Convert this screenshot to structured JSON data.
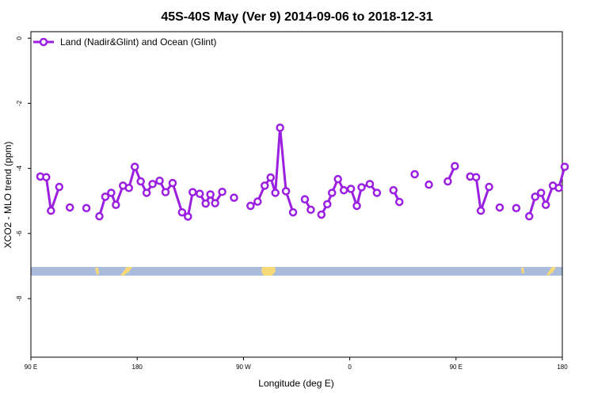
{
  "chart_data": {
    "type": "line",
    "title": "45S-40S May (Ver 9)   2014-09-06 to 2018-12-31",
    "xlabel": "Longitude (deg E)",
    "ylabel": "XCO2 - MLO trend (ppm)",
    "x_ticks": [
      {
        "pos": 90,
        "label": "90 E"
      },
      {
        "pos": 180,
        "label": "180"
      },
      {
        "pos": 270,
        "label": "90 W"
      },
      {
        "pos": 360,
        "label": "0"
      },
      {
        "pos": 450,
        "label": "90 E"
      },
      {
        "pos": 540,
        "label": "180"
      }
    ],
    "y_ticks": [
      0,
      -2,
      -4,
      -6,
      -8
    ],
    "xlim": [
      90,
      540
    ],
    "ylim": [
      -9.8,
      0.2
    ],
    "grid": false,
    "legend_position": "top-left",
    "series": [
      {
        "name": "Land (Nadir&Glint) and Ocean (Glint)",
        "color": "#9b1fe0",
        "points": [
          [
            98,
            -4.25
          ],
          [
            103,
            -4.27
          ],
          [
            107,
            -5.3
          ],
          [
            114,
            -4.57
          ],
          [
            123,
            -5.2
          ],
          [
            137,
            -5.22
          ],
          [
            148,
            -5.47
          ],
          [
            153,
            -4.87
          ],
          [
            158,
            -4.75
          ],
          [
            162,
            -5.12
          ],
          [
            168,
            -4.53
          ],
          [
            173,
            -4.6
          ],
          [
            178,
            -3.95
          ],
          [
            183,
            -4.4
          ],
          [
            188,
            -4.75
          ],
          [
            193,
            -4.48
          ],
          [
            199,
            -4.38
          ],
          [
            204,
            -4.73
          ],
          [
            210,
            -4.45
          ],
          [
            218,
            -5.35
          ],
          [
            223,
            -5.48
          ],
          [
            227,
            -4.73
          ],
          [
            233,
            -4.78
          ],
          [
            238,
            -5.08
          ],
          [
            242,
            -4.8
          ],
          [
            246,
            -5.07
          ],
          [
            252,
            -4.72
          ],
          [
            262,
            -4.9
          ],
          [
            276,
            -5.15
          ],
          [
            282,
            -5.02
          ],
          [
            288,
            -4.53
          ],
          [
            293,
            -4.28
          ],
          [
            297,
            -4.75
          ],
          [
            301,
            -2.75
          ],
          [
            306,
            -4.7
          ],
          [
            312,
            -5.35
          ],
          [
            322,
            -4.95
          ],
          [
            327,
            -5.27
          ],
          [
            336,
            -5.42
          ],
          [
            341,
            -5.1
          ],
          [
            345,
            -4.75
          ],
          [
            350,
            -4.33
          ],
          [
            355,
            -4.67
          ],
          [
            361,
            -4.63
          ],
          [
            366,
            -5.15
          ],
          [
            370,
            -4.58
          ],
          [
            377,
            -4.48
          ],
          [
            383,
            -4.75
          ],
          [
            397,
            -4.67
          ],
          [
            402,
            -5.03
          ],
          [
            415,
            -4.18
          ],
          [
            427,
            -4.5
          ],
          [
            443,
            -4.4
          ],
          [
            449,
            -3.93
          ],
          [
            462,
            -4.25
          ],
          [
            467,
            -4.27
          ],
          [
            471,
            -5.3
          ],
          [
            478,
            -4.57
          ],
          [
            487,
            -5.2
          ],
          [
            501,
            -5.22
          ],
          [
            512,
            -5.47
          ],
          [
            517,
            -4.87
          ],
          [
            522,
            -4.75
          ],
          [
            526,
            -5.12
          ],
          [
            532,
            -4.53
          ],
          [
            537,
            -4.6
          ],
          [
            542,
            -3.95
          ]
        ]
      }
    ]
  }
}
